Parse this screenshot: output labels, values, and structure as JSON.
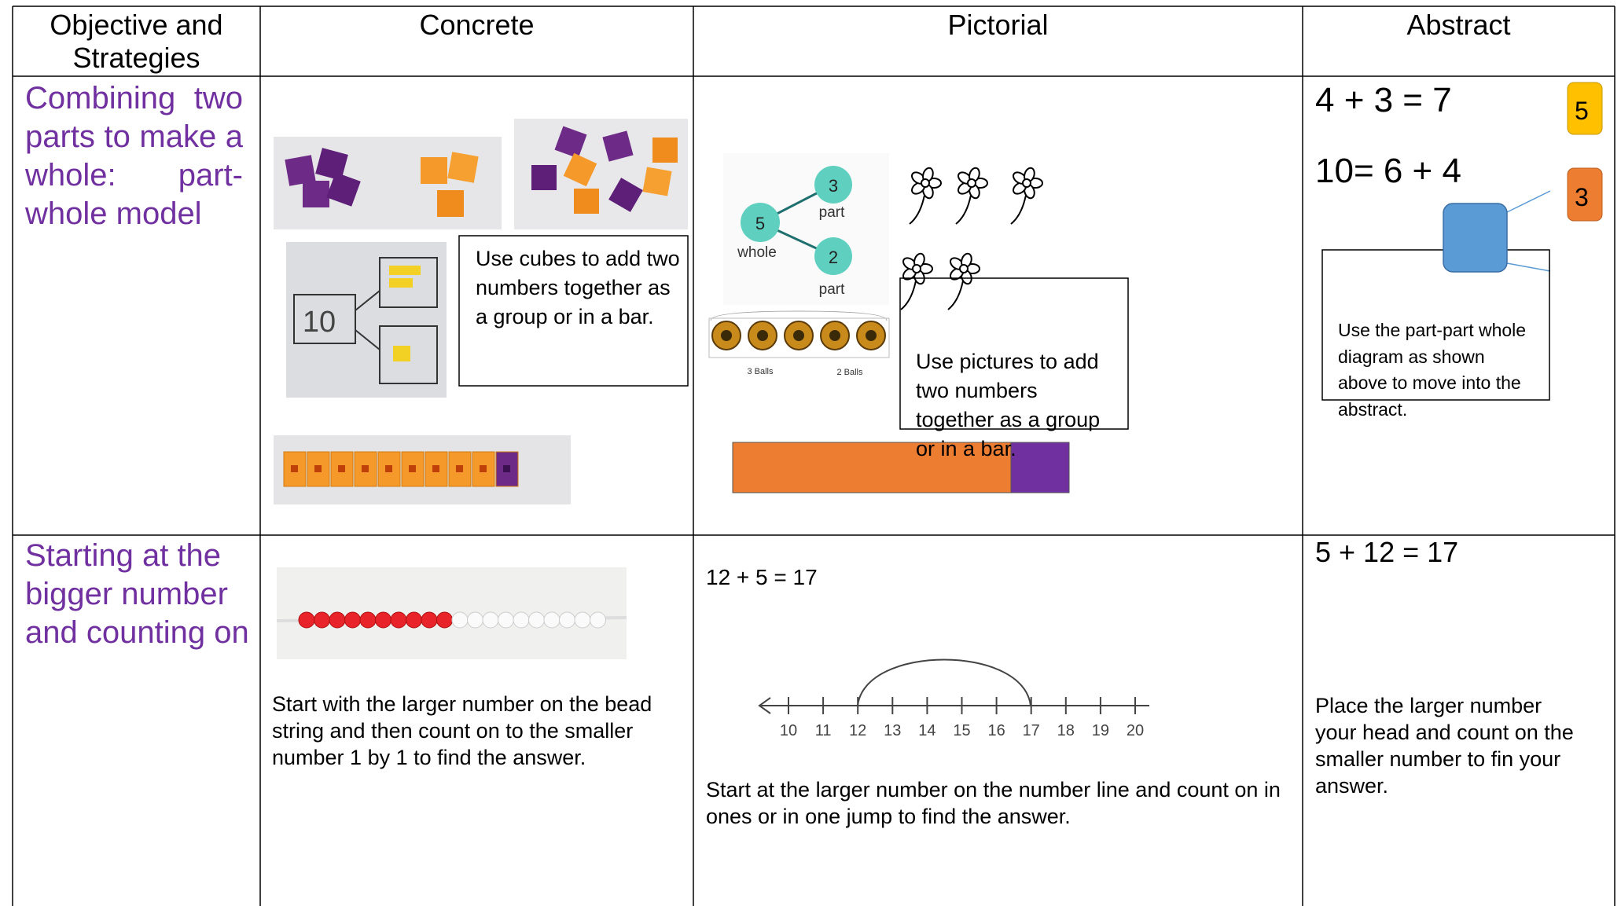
{
  "table": {
    "headers": [
      "Objective and Strategies",
      "Concrete",
      "Pictorial",
      "Abstract"
    ],
    "rows": [
      {
        "objective": "Combining two parts to make a whole: part- whole model",
        "concrete": {
          "text": "Use cubes to add two numbers together as a group or in a bar.",
          "diagram_label": "10"
        },
        "pictorial": {
          "text": "Use pictures to add two numbers together as a group or in a bar.",
          "whole": "5",
          "whole_label": "whole",
          "parts": [
            "3",
            "2"
          ],
          "part_label": "part",
          "ball_labels": [
            "3 Balls",
            "2 Balls"
          ]
        },
        "abstract": {
          "equations": [
            "4 + 3 = 7",
            "10= 6 + 4"
          ],
          "cards": [
            "5",
            "3"
          ],
          "text": "Use the part-part whole diagram as shown above to move into the abstract."
        }
      },
      {
        "objective": "Starting at the bigger number and counting on",
        "concrete": {
          "text": "Start with the larger number on the bead string and then count on to the smaller number 1 by 1 to find the answer."
        },
        "pictorial": {
          "equation": "12 + 5 = 17",
          "number_line": [
            10,
            11,
            12,
            13,
            14,
            15,
            16,
            17,
            18,
            19,
            20
          ],
          "text": "Start at the larger number on the number line and count on in ones or in one jump to find the answer."
        },
        "abstract": {
          "equation": "5 + 12 = 17",
          "text": "Place the larger number your head and count on the smaller number to fin your answer."
        }
      }
    ]
  }
}
